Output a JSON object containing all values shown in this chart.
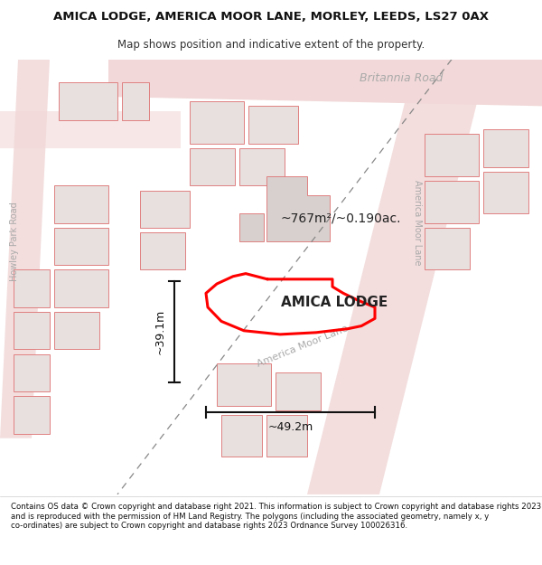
{
  "title": "AMICA LODGE, AMERICA MOOR LANE, MORLEY, LEEDS, LS27 0AX",
  "subtitle": "Map shows position and indicative extent of the property.",
  "footer": "Contains OS data © Crown copyright and database right 2021. This information is subject to Crown copyright and database rights 2023 and is reproduced with the permission of HM Land Registry. The polygons (including the associated geometry, namely x, y co-ordinates) are subject to Crown copyright and database rights 2023 Ordnance Survey 100026316.",
  "area_text": "~767m²/~0.190ac.",
  "property_label": "AMICA LODGE",
  "dim_width": "~49.2m",
  "dim_height": "~39.1m",
  "road_name_britannia": "Britannia Road",
  "road_name_america_vert": "America Moor Lane",
  "road_name_america_diag": "America Moor Lane",
  "road_name_howley": "Howley Park Road",
  "highlight_color": "#ff0000",
  "road_fill": "#f2d8d8",
  "road_outline": "#e8b8b8",
  "bld_fill": "#e8e0df",
  "bld_edge": "#e08080",
  "bld_dark_fill": "#d8d0ce",
  "map_bg": "#f8f5f5",
  "dim_color": "#111111",
  "label_color": "#aaaaaa",
  "text_color": "#222222"
}
